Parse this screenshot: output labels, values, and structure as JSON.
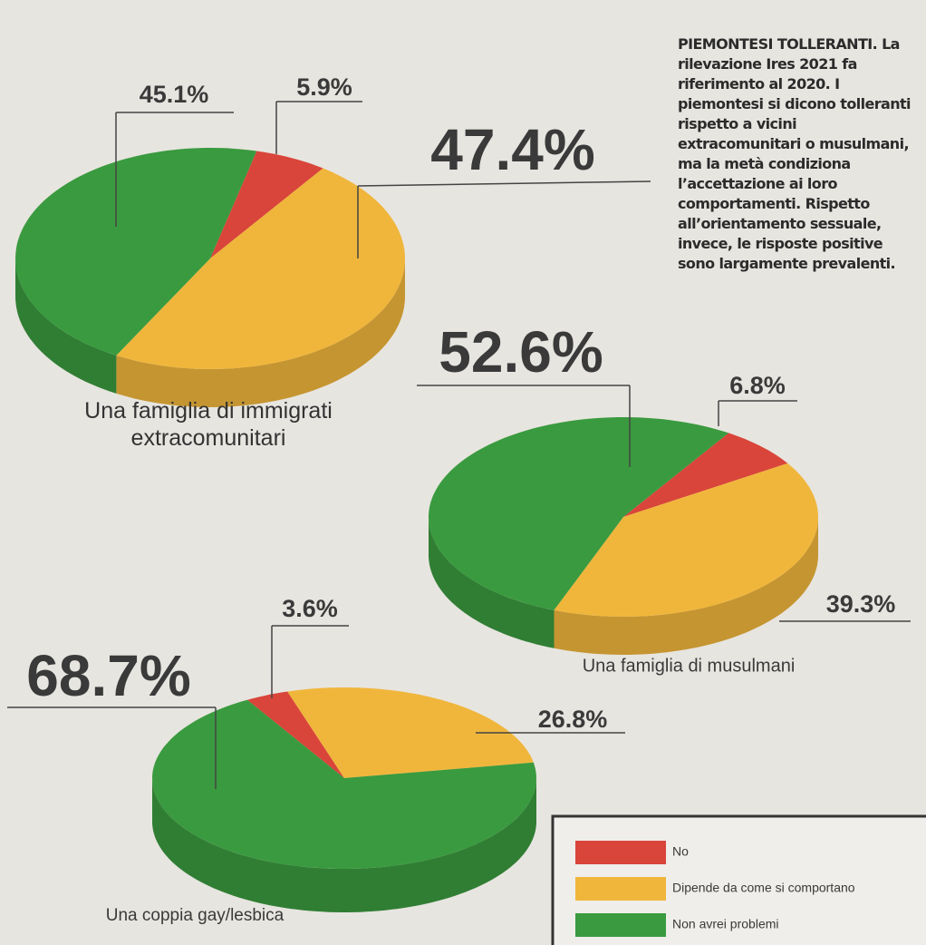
{
  "annotation": {
    "title": "PIEMONTESI TOLLERANTI.",
    "text": "La rilevazione Ires 2021 fa riferimento al 2020. I piemontesi si dicono tolleranti rispetto a vicini extracomunitari o musulmani, ma la metà condiziona l’accettazione ai loro comportamenti. Rispetto all’orientamento sessuale, invece, le risposte positive sono largamente prevalenti."
  },
  "legend": {
    "categories": [
      "No",
      "Dipende da come si comportano",
      "Non avrei problemi"
    ],
    "colors": [
      "#d9453a",
      "#f0b63c",
      "#3a9a3f"
    ]
  },
  "chart_data": [
    {
      "type": "pie",
      "title": "Una famiglia di immigrati extracomunitari",
      "values": [
        5.9,
        47.4,
        45.1
      ],
      "value_labels": [
        "5.9%",
        "47.4%",
        "45.1%"
      ]
    },
    {
      "type": "pie",
      "title": "Una famiglia di musulmani",
      "values": [
        6.8,
        39.3,
        52.6
      ],
      "value_labels": [
        "6.8%",
        "39.3%",
        "52.6%"
      ]
    },
    {
      "type": "pie",
      "title": "Una coppia gay/lesbica",
      "values": [
        3.6,
        26.8,
        68.7
      ],
      "value_labels": [
        "3.6%",
        "26.8%",
        "68.7%"
      ]
    }
  ]
}
